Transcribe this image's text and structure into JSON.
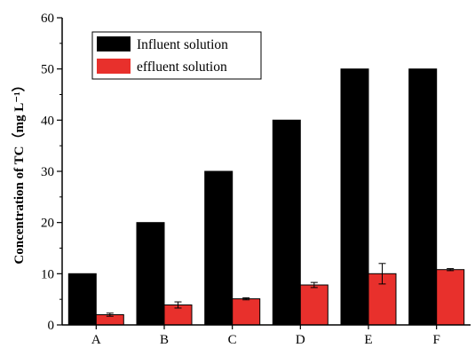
{
  "chart_data": {
    "type": "bar",
    "title": "",
    "xlabel": "",
    "ylabel": "Concentration of TC（mg L⁻¹）",
    "categories": [
      "A",
      "B",
      "C",
      "D",
      "E",
      "F"
    ],
    "ylim": [
      0,
      60
    ],
    "yticks": [
      0,
      10,
      20,
      30,
      40,
      50,
      60
    ],
    "legend_position": "top-left",
    "grid": false,
    "series": [
      {
        "name": "Influent solution",
        "color": "#000000",
        "values": [
          10,
          20,
          30,
          40,
          50,
          50
        ],
        "errors": [
          0,
          0,
          0,
          0,
          0,
          0
        ]
      },
      {
        "name": "effluent solution",
        "color": "#e8302c",
        "values": [
          2.0,
          3.9,
          5.1,
          7.8,
          10.0,
          10.8
        ],
        "errors": [
          0.3,
          0.6,
          0.2,
          0.5,
          2.0,
          0.2
        ]
      }
    ]
  }
}
